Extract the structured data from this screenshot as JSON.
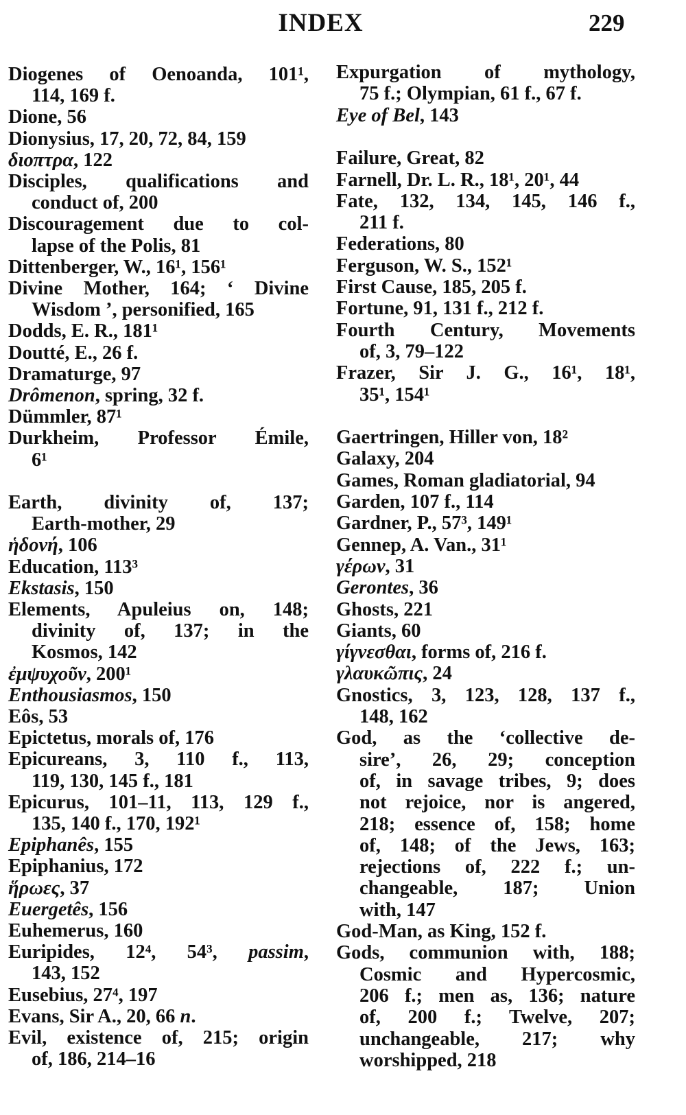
{
  "header": {
    "title": "INDEX",
    "page_number": "229"
  },
  "columns": {
    "left": [
      {
        "parts": [
          [
            "Diogenes of Oenoanda, 101¹,",
            0
          ]
        ],
        "j": 1
      },
      {
        "parts": [
          [
            "114, 169 f.",
            0
          ]
        ],
        "ind": 1
      },
      {
        "parts": [
          [
            "Dione, 56",
            0
          ]
        ]
      },
      {
        "parts": [
          [
            "Dionysius, 17, 20, 72, 84, 159",
            0
          ]
        ]
      },
      {
        "parts": [
          [
            "διοπτρα",
            1
          ],
          [
            ", 122",
            0
          ]
        ]
      },
      {
        "parts": [
          [
            "Disciples, qualifications and",
            0
          ]
        ],
        "j": 1
      },
      {
        "parts": [
          [
            "conduct of, 200",
            0
          ]
        ],
        "ind": 1
      },
      {
        "parts": [
          [
            "Discouragement due to col-",
            0
          ]
        ],
        "j": 1
      },
      {
        "parts": [
          [
            "lapse of the Polis, 81",
            0
          ]
        ],
        "ind": 1
      },
      {
        "parts": [
          [
            "Dittenberger, W., 16¹, 156¹",
            0
          ]
        ]
      },
      {
        "parts": [
          [
            "Divine Mother, 164; ‘ Divine",
            0
          ]
        ],
        "j": 1
      },
      {
        "parts": [
          [
            "Wisdom ’, personified, 165",
            0
          ]
        ],
        "ind": 1
      },
      {
        "parts": [
          [
            "Dodds, E. R., 181¹",
            0
          ]
        ]
      },
      {
        "parts": [
          [
            "Doutté, E., 26 f.",
            0
          ]
        ]
      },
      {
        "parts": [
          [
            "Dramaturge, 97",
            0
          ]
        ]
      },
      {
        "parts": [
          [
            "Drômenon",
            1
          ],
          [
            ", spring, 32 f.",
            0
          ]
        ]
      },
      {
        "parts": [
          [
            "Dümmler, 87¹",
            0
          ]
        ]
      },
      {
        "parts": [
          [
            "Durkheim, Professor Émile,",
            0
          ]
        ],
        "j": 1
      },
      {
        "parts": [
          [
            "6¹",
            0
          ]
        ],
        "ind": 1
      },
      {
        "parts": []
      },
      {
        "parts": [
          [
            "Earth, divinity of, 137;",
            0
          ]
        ],
        "j": 1
      },
      {
        "parts": [
          [
            "Earth-mother, 29",
            0
          ]
        ],
        "ind": 1
      },
      {
        "parts": [
          [
            "ἡδονή",
            1
          ],
          [
            ", 106",
            0
          ]
        ]
      },
      {
        "parts": [
          [
            "Education, 113³",
            0
          ]
        ]
      },
      {
        "parts": [
          [
            "Ekstasis",
            1
          ],
          [
            ", 150",
            0
          ]
        ]
      },
      {
        "parts": [
          [
            "Elements, Apuleius on, 148;",
            0
          ]
        ],
        "j": 1
      },
      {
        "parts": [
          [
            "divinity of, 137; in the",
            0
          ]
        ],
        "ind": 1,
        "j": 1
      },
      {
        "parts": [
          [
            "Kosmos, 142",
            0
          ]
        ],
        "ind": 1
      },
      {
        "parts": [
          [
            "ἐμψυχοῦν",
            1
          ],
          [
            ", 200¹",
            0
          ]
        ]
      },
      {
        "parts": [
          [
            "Enthousiasmos",
            1
          ],
          [
            ", 150",
            0
          ]
        ]
      },
      {
        "parts": [
          [
            "Eôs, 53",
            0
          ]
        ]
      },
      {
        "parts": [
          [
            "Epictetus, morals of, 176",
            0
          ]
        ]
      },
      {
        "parts": [
          [
            "Epicureans, 3, 110 f., 113,",
            0
          ]
        ],
        "j": 1
      },
      {
        "parts": [
          [
            "119, 130, 145 f., 181",
            0
          ]
        ],
        "ind": 1
      },
      {
        "parts": [
          [
            "Epicurus, 101–11, 113, 129 f.,",
            0
          ]
        ],
        "j": 1
      },
      {
        "parts": [
          [
            "135, 140 f., 170, 192¹",
            0
          ]
        ],
        "ind": 1
      },
      {
        "parts": [
          [
            "Epiphanês",
            1
          ],
          [
            ", 155",
            0
          ]
        ]
      },
      {
        "parts": [
          [
            "Epiphanius, 172",
            0
          ]
        ]
      },
      {
        "parts": [
          [
            "ἥρωες",
            1
          ],
          [
            ", 37",
            0
          ]
        ]
      },
      {
        "parts": [
          [
            "Euergetês",
            1
          ],
          [
            ", 156",
            0
          ]
        ]
      },
      {
        "parts": [
          [
            "Euhemerus, 160",
            0
          ]
        ]
      },
      {
        "parts": [
          [
            "Euripides, 12⁴, 54³, ",
            0
          ],
          [
            "passim",
            1
          ],
          [
            ",",
            0
          ]
        ],
        "j": 1
      },
      {
        "parts": [
          [
            "143, 152",
            0
          ]
        ],
        "ind": 1
      },
      {
        "parts": [
          [
            "Eusebius, 27⁴, 197",
            0
          ]
        ]
      },
      {
        "parts": [
          [
            "Evans, Sir A., 20, 66 ",
            0
          ],
          [
            "n",
            1
          ],
          [
            ".",
            0
          ]
        ]
      },
      {
        "parts": [
          [
            "Evil, existence of, 215; origin",
            0
          ]
        ],
        "j": 1
      },
      {
        "parts": [
          [
            "of, 186, 214–16",
            0
          ]
        ],
        "ind": 1
      }
    ],
    "right": [
      {
        "parts": [
          [
            "Expurgation of mythology,",
            0
          ]
        ],
        "j": 1
      },
      {
        "parts": [
          [
            "75 f.; Olympian, 61 f., 67 f.",
            0
          ]
        ],
        "ind": 1
      },
      {
        "parts": [
          [
            "Eye of Bel",
            1
          ],
          [
            ", 143",
            0
          ]
        ]
      },
      {
        "parts": []
      },
      {
        "parts": [
          [
            "Failure, Great, 82",
            0
          ]
        ]
      },
      {
        "parts": [
          [
            "Farnell, Dr. L. R., 18¹, 20¹, 44",
            0
          ]
        ]
      },
      {
        "parts": [
          [
            "Fate, 132, 134, 145, 146 f.,",
            0
          ]
        ],
        "j": 1
      },
      {
        "parts": [
          [
            "211 f.",
            0
          ]
        ],
        "ind": 1
      },
      {
        "parts": [
          [
            "Federations, 80",
            0
          ]
        ]
      },
      {
        "parts": [
          [
            "Ferguson, W. S., 152¹",
            0
          ]
        ]
      },
      {
        "parts": [
          [
            "First Cause, 185, 205 f.",
            0
          ]
        ]
      },
      {
        "parts": [
          [
            "Fortune, 91, 131 f., 212 f.",
            0
          ]
        ]
      },
      {
        "parts": [
          [
            "Fourth Century, Movements",
            0
          ]
        ],
        "j": 1
      },
      {
        "parts": [
          [
            "of, 3, 79–122",
            0
          ]
        ],
        "ind": 1
      },
      {
        "parts": [
          [
            "Frazer, Sir J. G., 16¹, 18¹,",
            0
          ]
        ],
        "j": 1
      },
      {
        "parts": [
          [
            "35¹, 154¹",
            0
          ]
        ],
        "ind": 1
      },
      {
        "parts": []
      },
      {
        "parts": [
          [
            "Gaertringen, Hiller von, 18²",
            0
          ]
        ]
      },
      {
        "parts": [
          [
            "Galaxy, 204",
            0
          ]
        ]
      },
      {
        "parts": [
          [
            "Games, Roman gladiatorial, 94",
            0
          ]
        ]
      },
      {
        "parts": [
          [
            "Garden, 107 f., 114",
            0
          ]
        ]
      },
      {
        "parts": [
          [
            "Gardner, P., 57³, 149¹",
            0
          ]
        ]
      },
      {
        "parts": [
          [
            "Gennep, A. Van., 31¹",
            0
          ]
        ]
      },
      {
        "parts": [
          [
            "γέρων",
            1
          ],
          [
            ", 31",
            0
          ]
        ]
      },
      {
        "parts": [
          [
            "Gerontes",
            1
          ],
          [
            ", 36",
            0
          ]
        ]
      },
      {
        "parts": [
          [
            "Ghosts, 221",
            0
          ]
        ]
      },
      {
        "parts": [
          [
            "Giants, 60",
            0
          ]
        ]
      },
      {
        "parts": [
          [
            "γίγνεσθαι",
            1
          ],
          [
            ", forms of, 216 f.",
            0
          ]
        ]
      },
      {
        "parts": [
          [
            "γλαυκῶπις",
            1
          ],
          [
            ", 24",
            0
          ]
        ]
      },
      {
        "parts": [
          [
            "Gnostics, 3, 123, 128, 137 f.,",
            0
          ]
        ],
        "j": 1
      },
      {
        "parts": [
          [
            "148, 162",
            0
          ]
        ],
        "ind": 1
      },
      {
        "parts": [
          [
            "God, as the ‘collective de-",
            0
          ]
        ],
        "j": 1
      },
      {
        "parts": [
          [
            "sire’, 26, 29; conception",
            0
          ]
        ],
        "ind": 1,
        "j": 1
      },
      {
        "parts": [
          [
            "of, in savage tribes, 9; does",
            0
          ]
        ],
        "ind": 1,
        "j": 1
      },
      {
        "parts": [
          [
            "not rejoice, nor is angered,",
            0
          ]
        ],
        "ind": 1,
        "j": 1
      },
      {
        "parts": [
          [
            "218; essence of, 158; home",
            0
          ]
        ],
        "ind": 1,
        "j": 1
      },
      {
        "parts": [
          [
            "of, 148; of the Jews, 163;",
            0
          ]
        ],
        "ind": 1,
        "j": 1
      },
      {
        "parts": [
          [
            "rejections of, 222 f.; un-",
            0
          ]
        ],
        "ind": 1,
        "j": 1
      },
      {
        "parts": [
          [
            "changeable, 187; Union",
            0
          ]
        ],
        "ind": 1,
        "j": 1
      },
      {
        "parts": [
          [
            "with, 147",
            0
          ]
        ],
        "ind": 1
      },
      {
        "parts": [
          [
            "God-Man, as King, 152 f.",
            0
          ]
        ]
      },
      {
        "parts": [
          [
            "Gods, communion with, 188;",
            0
          ]
        ],
        "j": 1
      },
      {
        "parts": [
          [
            "Cosmic and Hypercosmic,",
            0
          ]
        ],
        "ind": 1,
        "j": 1
      },
      {
        "parts": [
          [
            "206 f.; men as, 136; nature",
            0
          ]
        ],
        "ind": 1,
        "j": 1
      },
      {
        "parts": [
          [
            "of, 200 f.; Twelve, 207;",
            0
          ]
        ],
        "ind": 1,
        "j": 1
      },
      {
        "parts": [
          [
            "unchangeable, 217; why",
            0
          ]
        ],
        "ind": 1,
        "j": 1
      },
      {
        "parts": [
          [
            "worshipped, 218",
            0
          ]
        ],
        "ind": 1
      }
    ]
  }
}
